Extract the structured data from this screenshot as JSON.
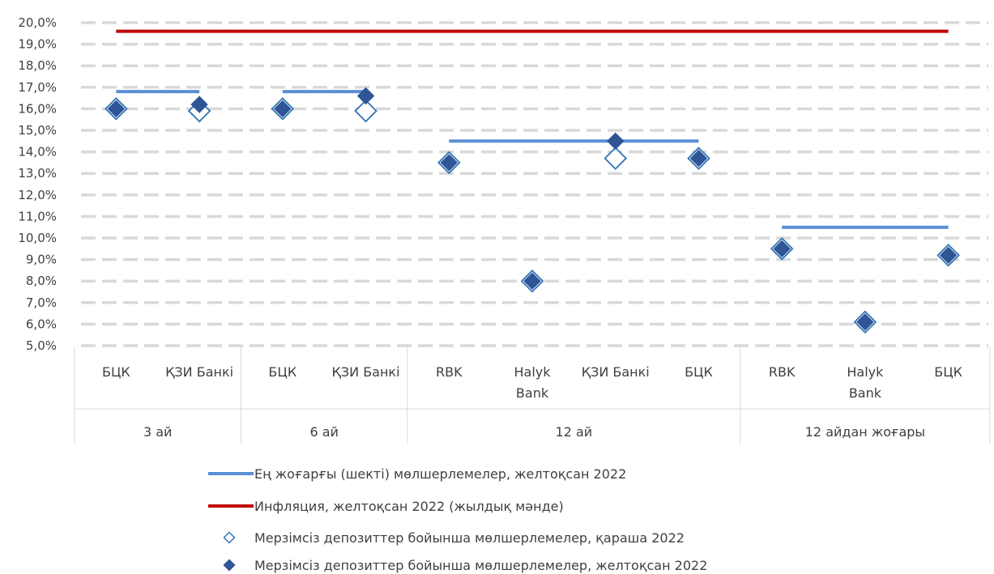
{
  "chart_data": {
    "type": "scatter",
    "title": "",
    "xlabel": "",
    "ylabel": "",
    "ylim": [
      5.0,
      20.0
    ],
    "y_tick_step": 1.0,
    "y_tick_labels": [
      "5,0%",
      "6,0%",
      "7,0%",
      "8,0%",
      "9,0%",
      "10,0%",
      "11,0%",
      "12,0%",
      "13,0%",
      "14,0%",
      "15,0%",
      "16,0%",
      "17,0%",
      "18,0%",
      "19,0%",
      "20,0%"
    ],
    "grid": "dashed-horizontal",
    "legend_position": "bottom",
    "categories": [
      {
        "label": "БЦК",
        "group": 0
      },
      {
        "label": "ҚЗИ Банкі",
        "group": 0
      },
      {
        "label": "БЦК",
        "group": 1
      },
      {
        "label": "ҚЗИ Банкі",
        "group": 1
      },
      {
        "label": "RBK",
        "group": 2
      },
      {
        "label": "Halyk Bank",
        "group": 2
      },
      {
        "label": "ҚЗИ Банкі",
        "group": 2
      },
      {
        "label": "БЦК",
        "group": 2
      },
      {
        "label": "RBK",
        "group": 3
      },
      {
        "label": "Halyk Bank",
        "group": 3
      },
      {
        "label": "БЦК",
        "group": 3
      }
    ],
    "groups": [
      "3 ай",
      "6 ай",
      "12 ай",
      "12 айдан жоғары"
    ],
    "series": [
      {
        "name": "Ең жоғарғы (шекті) мөлшерлемелер, желтоқсан 2022",
        "kind": "group-line",
        "color": "#5b8fd4",
        "segments": [
          {
            "from": 0,
            "to": 1,
            "value": 16.8
          },
          {
            "from": 2,
            "to": 3,
            "value": 16.8
          },
          {
            "from": 4,
            "to": 7,
            "value": 14.5
          },
          {
            "from": 8,
            "to": 10,
            "value": 10.5
          }
        ]
      },
      {
        "name": "Инфляция, желтоқсан 2022 (жылдық мәнде)",
        "kind": "line",
        "color": "#c00000",
        "from": 0,
        "to": 10,
        "value": 19.6
      },
      {
        "name": "Мерзімсіз депозиттер бойынша мөлшерлемелер, қараша 2022",
        "kind": "marker-hollow",
        "color": "#2e75b6",
        "values": [
          16.0,
          15.9,
          16.0,
          15.9,
          13.5,
          8.0,
          13.7,
          13.7,
          9.5,
          6.1,
          9.2
        ]
      },
      {
        "name": "Мерзімсіз депозиттер бойынша мөлшерлемелер, желтоқсан 2022",
        "kind": "marker-filled",
        "color": "#2f5597",
        "values": [
          16.0,
          16.2,
          16.0,
          16.6,
          13.5,
          8.0,
          14.5,
          13.7,
          9.5,
          6.1,
          9.2
        ]
      }
    ]
  }
}
